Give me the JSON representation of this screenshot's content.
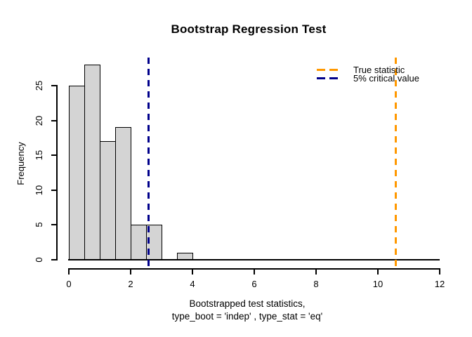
{
  "chart_data": {
    "type": "histogram",
    "title": "Bootstrap Regression Test",
    "ylabel": "Frequency",
    "xlabel_line1": "Bootstrapped test statistics,",
    "xlabel_line2": "type_boot = 'indep' , type_stat = 'eq'",
    "bins": {
      "start": 0,
      "width": 0.5,
      "counts": [
        25,
        28,
        17,
        19,
        5,
        5,
        0,
        1
      ]
    },
    "x_ticks": [
      0,
      2,
      4,
      6,
      8,
      10,
      12
    ],
    "y_ticks": [
      0,
      5,
      10,
      15,
      20,
      25
    ],
    "xlim": [
      0,
      12
    ],
    "ylim": [
      0,
      28
    ],
    "grid": false,
    "bar_fill_color": "#d4d4d4",
    "bar_border_color": "#000000",
    "axis_color": "#000000",
    "background_color": "#ffffff",
    "vlines": [
      {
        "id": "true-statistic",
        "value": 10.57,
        "color": "#ff9800",
        "style": "dashed",
        "label": "True statistic"
      },
      {
        "id": "critical-value",
        "value": 2.57,
        "color": "#00008b",
        "style": "dashed",
        "label": "5% critical value"
      }
    ],
    "legend": {
      "position": "topright",
      "entries": [
        {
          "label": "True statistic",
          "color": "#ff9800"
        },
        {
          "label": "5% critical value",
          "color": "#00008b"
        }
      ]
    }
  }
}
